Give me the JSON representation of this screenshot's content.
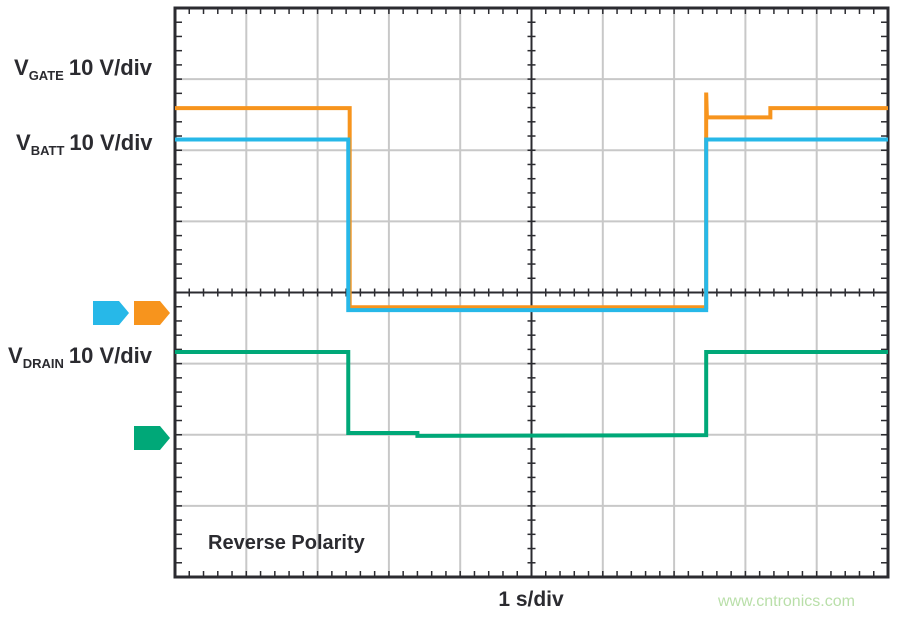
{
  "chart_data": {
    "type": "line",
    "title": "",
    "annotation": "Reverse Polarity",
    "xlabel": "1 s/div",
    "x_unit": "s",
    "xlim": [
      0,
      10
    ],
    "grid": true,
    "grid_divisions": {
      "horizontal": 10,
      "vertical": 8
    },
    "series": [
      {
        "name": "VGATE",
        "label_main": "V",
        "label_sub": "GATE",
        "scale": "10 V/div",
        "color": "#f7941d",
        "x": [
          0,
          2.45,
          2.45,
          7.45,
          7.45,
          7.46,
          8.35,
          8.35,
          10
        ],
        "y": [
          28.8,
          28.8,
          0.8,
          0.8,
          31,
          27.5,
          27.5,
          28.8,
          28.8
        ]
      },
      {
        "name": "VBATT",
        "label_main": "V",
        "label_sub": "BATT",
        "scale": "10 V/div",
        "color": "#27b8e8",
        "x": [
          0,
          2.43,
          2.43,
          7.45,
          7.45,
          10
        ],
        "y": [
          24.4,
          24.4,
          0.4,
          0.4,
          24.4,
          24.4
        ]
      },
      {
        "name": "VDRAIN",
        "label_main": "V",
        "label_sub": "DRAIN",
        "scale": "10 V/div",
        "color": "#00a878",
        "x": [
          0,
          2.43,
          2.43,
          3.4,
          3.4,
          7.45,
          7.45,
          10
        ],
        "y": [
          12.1,
          12.1,
          0.7,
          0.7,
          0.3,
          0.4,
          12.1,
          12.1
        ]
      }
    ]
  },
  "watermark": "www.cntronics.com",
  "colors": {
    "grid": "#c8c8c8",
    "frame": "#2b2b30"
  }
}
